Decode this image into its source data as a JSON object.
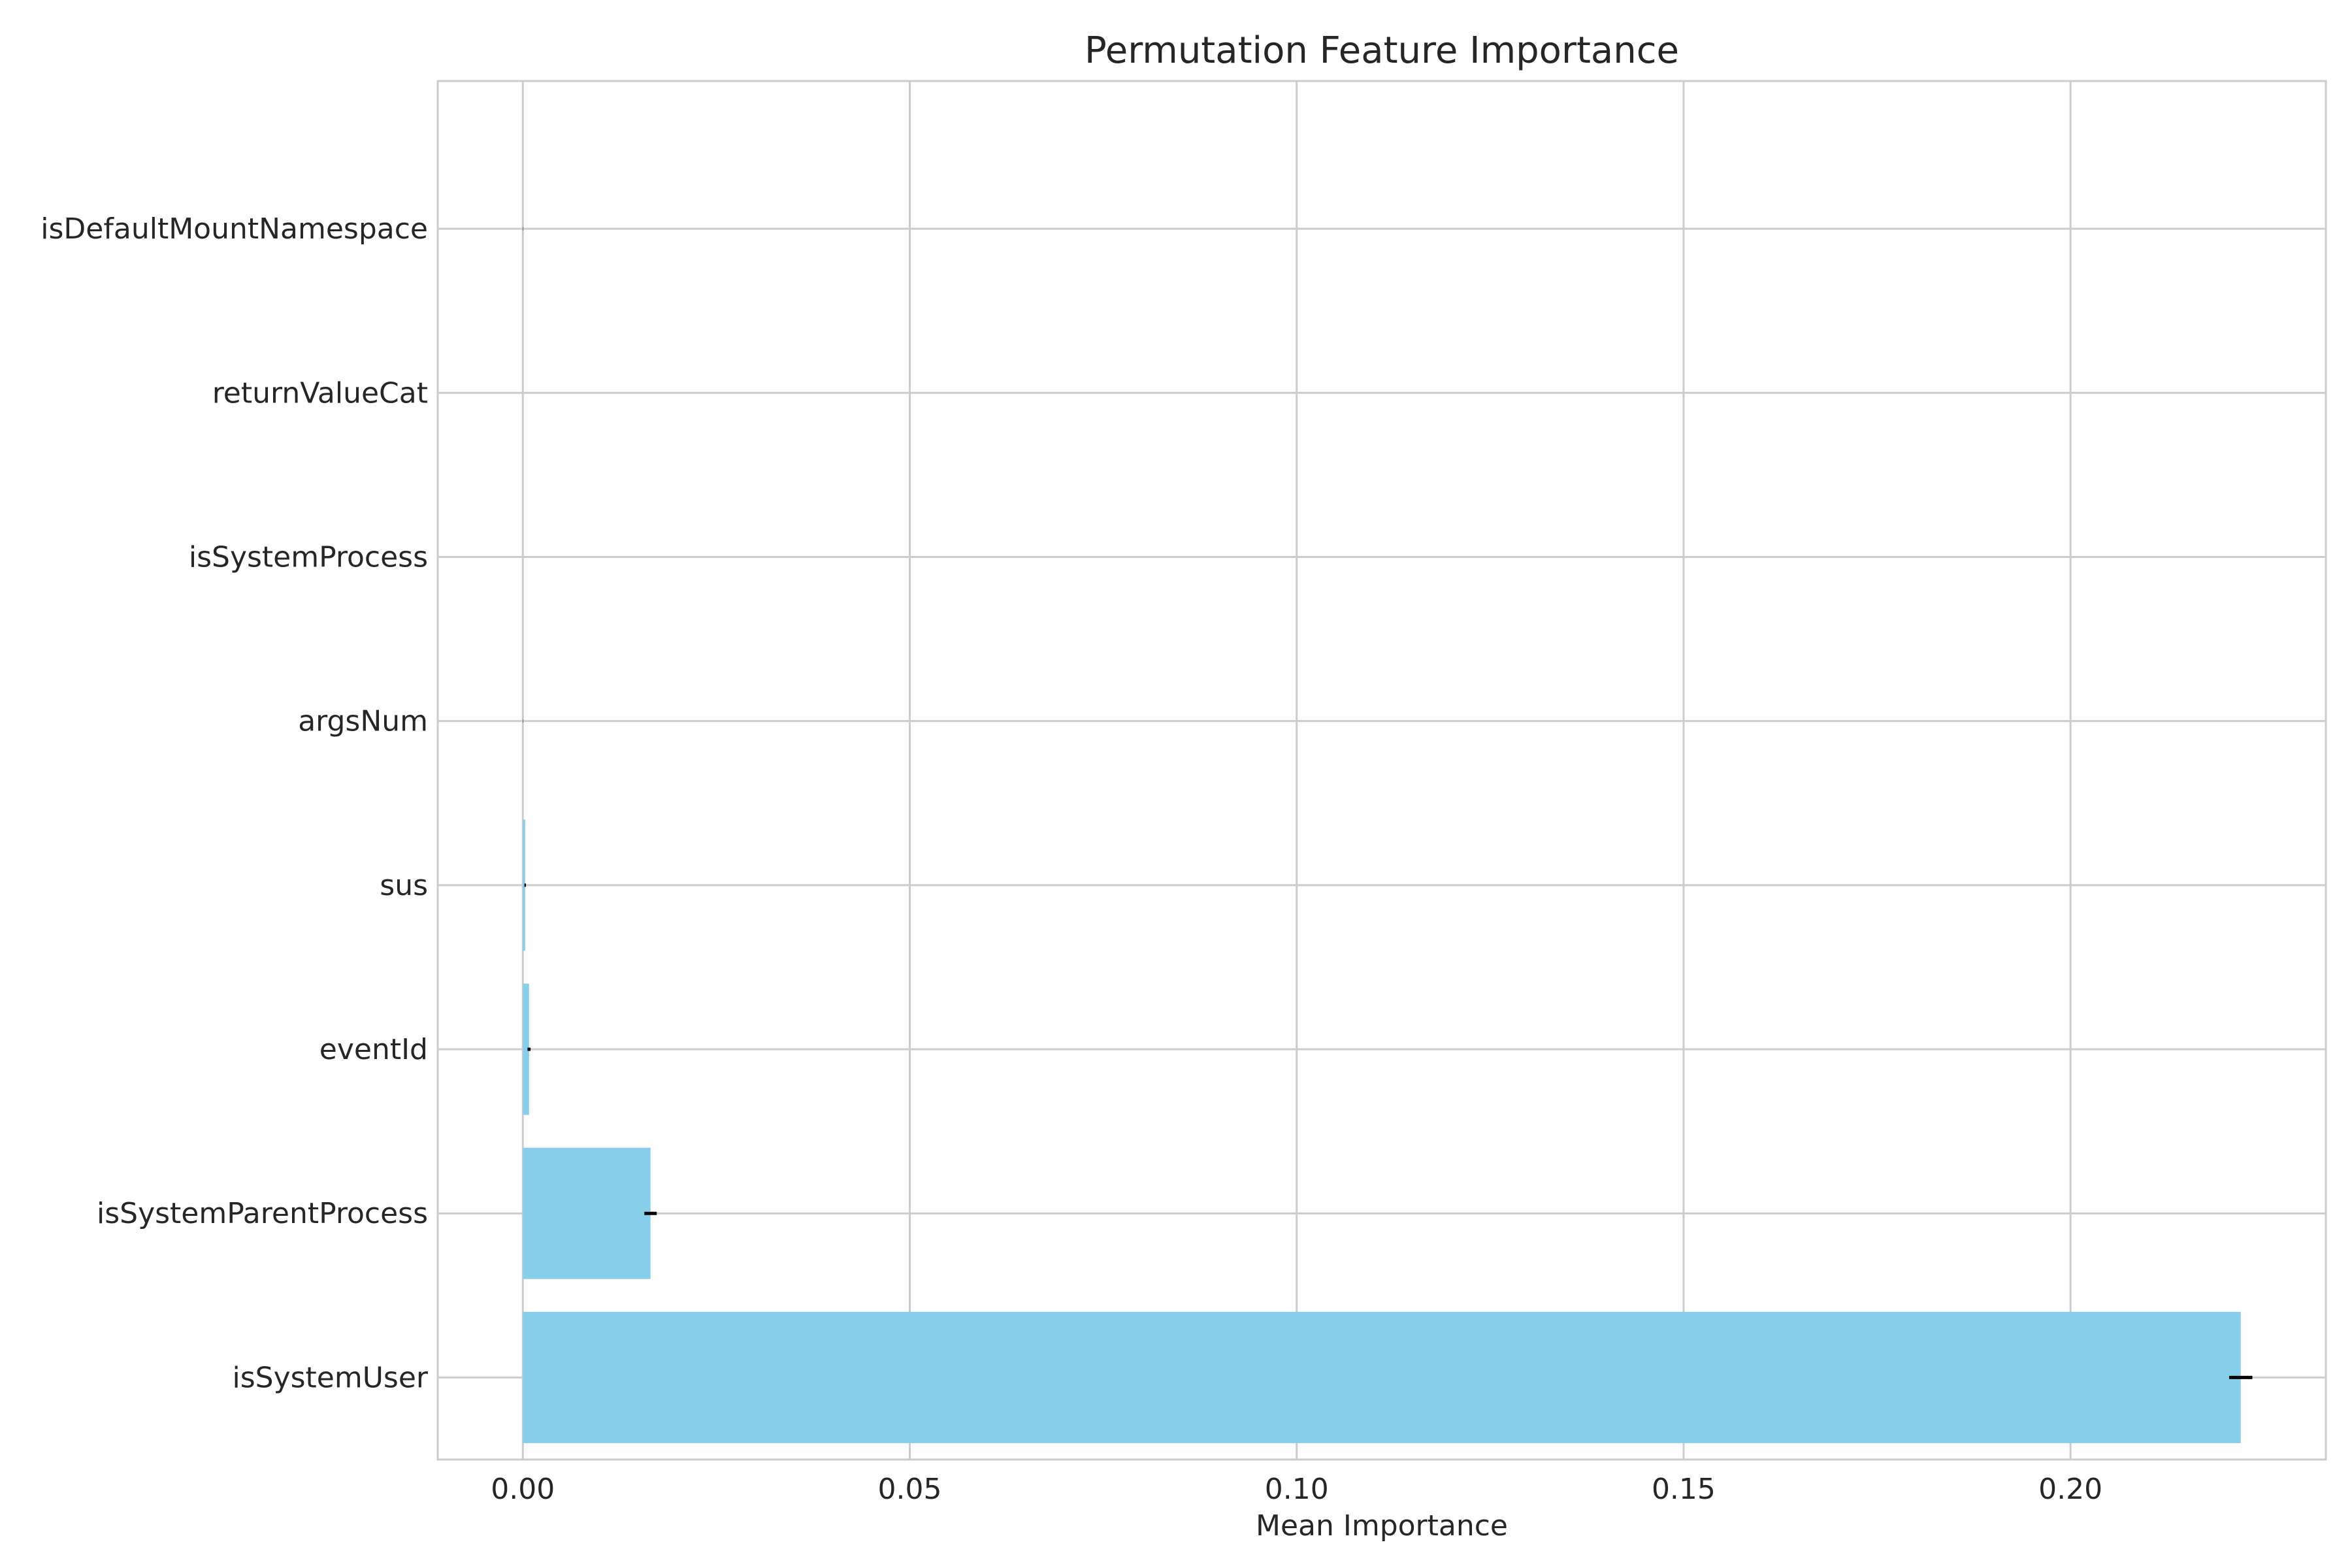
{
  "chart_data": {
    "type": "bar",
    "orientation": "horizontal",
    "title": "Permutation Feature Importance",
    "xlabel": "Mean Importance",
    "ylabel": "",
    "xlim": [
      -0.011,
      0.233
    ],
    "xticks": [
      0.0,
      0.05,
      0.1,
      0.15,
      0.2
    ],
    "xtick_labels": [
      "0.00",
      "0.05",
      "0.10",
      "0.15",
      "0.20"
    ],
    "grid": true,
    "categories": [
      "isDefaultMountNamespace",
      "returnValueCat",
      "isSystemProcess",
      "argsNum",
      "sus",
      "eventId",
      "isSystemParentProcess",
      "isSystemUser"
    ],
    "values": [
      1e-05,
      0.0,
      0.0,
      1e-05,
      0.0003,
      0.0008,
      0.0165,
      0.222
    ],
    "errors": [
      2e-05,
      0.0,
      0.0,
      2e-05,
      0.0001,
      0.0002,
      0.0008,
      0.0015
    ],
    "colors": {
      "bar": "#87ceeb",
      "error": "#000000",
      "grid": "#cccccc",
      "spine": "#cccccc"
    }
  }
}
